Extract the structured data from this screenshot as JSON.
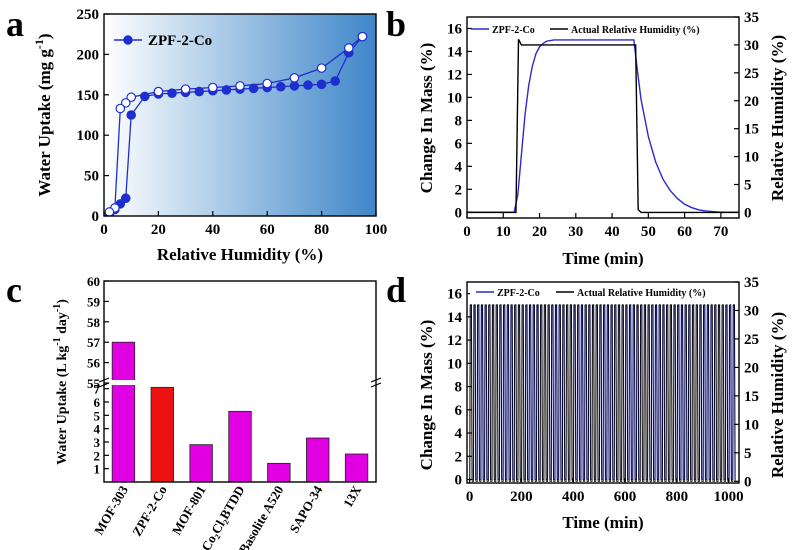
{
  "panel_labels": [
    "a",
    "b",
    "c",
    "d"
  ],
  "chart_data": [
    {
      "panel": "a",
      "type": "line",
      "xlabel": "Relative Humidity (%)",
      "ylabel": "Water Uptake (mg g",
      "ylabel_sup": "-1",
      "ylabel_close": ")",
      "xlim": [
        0,
        100
      ],
      "ylim": [
        0,
        250
      ],
      "xticks": [
        "0",
        "20",
        "40",
        "60",
        "80",
        "100"
      ],
      "yticks": [
        "0",
        "50",
        "100",
        "150",
        "200",
        "250"
      ],
      "legend": "ZPF-2-Co",
      "background_gradient": [
        "#ffffff",
        "#3e86c9"
      ],
      "series": [
        {
          "name": "ZPF-2-Co",
          "kind": "adsorption",
          "color": "#1f2fcf",
          "x": [
            2,
            4,
            6,
            8,
            10,
            15,
            20,
            25,
            30,
            35,
            40,
            45,
            50,
            55,
            60,
            65,
            70,
            75,
            80,
            85,
            90,
            95
          ],
          "y": [
            3,
            8,
            15,
            22,
            125,
            148,
            151,
            152,
            153,
            154,
            155,
            156,
            157,
            158,
            159,
            160,
            161,
            162,
            163,
            167,
            202,
            222
          ]
        },
        {
          "kind": "desorption",
          "color": "#1f2fcf",
          "x": [
            95,
            90,
            80,
            70,
            60,
            50,
            40,
            30,
            20,
            10,
            8,
            6,
            4,
            2
          ],
          "y": [
            222,
            208,
            183,
            171,
            164,
            161,
            159,
            157,
            154,
            147,
            140,
            133,
            10,
            5
          ]
        }
      ]
    },
    {
      "panel": "b",
      "type": "line",
      "xlabel": "Time (min)",
      "ylabel": "Change In Mass (%)",
      "y2label": "Relative Humidity (%)",
      "xlim": [
        0,
        75
      ],
      "ylim": [
        -0.5,
        17
      ],
      "y2lim": [
        -1,
        35
      ],
      "xticks": [
        "0",
        "10",
        "20",
        "30",
        "40",
        "50",
        "60",
        "70"
      ],
      "yticks": [
        "0",
        "2",
        "4",
        "6",
        "8",
        "10",
        "12",
        "14",
        "16"
      ],
      "y2ticks": [
        "0",
        "5",
        "10",
        "15",
        "20",
        "25",
        "30",
        "35"
      ],
      "series": [
        {
          "name": "ZPF-2-Co",
          "axis": "left",
          "color": "#2a2ad0",
          "x": [
            0,
            13,
            14,
            15,
            16,
            17,
            18,
            19,
            20,
            21,
            22,
            24,
            26,
            30,
            35,
            40,
            46,
            47,
            48,
            50,
            52,
            54,
            56,
            58,
            60,
            62,
            64,
            66,
            70,
            75
          ],
          "y": [
            0,
            0,
            1.5,
            5,
            8.5,
            11,
            12.7,
            13.8,
            14.4,
            14.7,
            14.9,
            15,
            15,
            15,
            15,
            15,
            15,
            12.3,
            9.8,
            6.6,
            4.4,
            2.9,
            1.9,
            1.2,
            0.7,
            0.4,
            0.2,
            0.1,
            0,
            0
          ]
        },
        {
          "name": "Actual Relative Humidity (%)",
          "axis": "right",
          "color": "#000000",
          "x": [
            0,
            13.5,
            14.2,
            15,
            46.5,
            47.2,
            48,
            75
          ],
          "y": [
            0,
            0,
            31,
            30,
            30,
            0.5,
            0,
            0
          ]
        }
      ]
    },
    {
      "panel": "c",
      "type": "bar",
      "ylabel": "Water Uptake (L kg",
      "ylabel_sup1": "-1",
      "ylabel_mid": " day",
      "ylabel_sup2": "-1",
      "ylabel_close": ")",
      "upper_ylim": [
        55,
        60
      ],
      "lower_ylim": [
        0,
        7.5
      ],
      "upper_yticks": [
        "55",
        "56",
        "57",
        "58",
        "59",
        "60"
      ],
      "lower_yticks": [
        "1",
        "2",
        "3",
        "4",
        "5",
        "6",
        "7"
      ],
      "categories": [
        "MOF-303",
        "ZPF-2-Co",
        "MOF-801",
        "Co₂Cl₂BTDD",
        "Basolite A520",
        "SAPO-34",
        "13X"
      ],
      "values": [
        57,
        7.1,
        2.8,
        5.3,
        1.4,
        3.3,
        2.1
      ],
      "colors": [
        "#e100e1",
        "#ee1111",
        "#e100e1",
        "#e100e1",
        "#e100e1",
        "#e100e1",
        "#e100e1"
      ]
    },
    {
      "panel": "d",
      "type": "line",
      "xlabel": "Time (min)",
      "ylabel": "Change In Mass (%)",
      "y2label": "Relative Humidity (%)",
      "xlim": [
        -10,
        1040
      ],
      "ylim": [
        -0.3,
        17
      ],
      "y2lim": [
        -0.3,
        35
      ],
      "xticks": [
        "0",
        "200",
        "400",
        "600",
        "800",
        "1000"
      ],
      "yticks": [
        "0",
        "2",
        "4",
        "6",
        "8",
        "10",
        "12",
        "14",
        "16"
      ],
      "y2ticks": [
        "0",
        "5",
        "10",
        "15",
        "20",
        "25",
        "30",
        "35"
      ],
      "series": [
        {
          "name": "ZPF-2-Co",
          "axis": "left",
          "color": "#2a2ad0",
          "cycle_period_min": 14.3,
          "cycles": 72,
          "min": 0,
          "max": 15
        },
        {
          "name": "Actual Relative Humidity (%)",
          "axis": "right",
          "color": "#000000",
          "cycle_period_min": 14.3,
          "cycles": 72,
          "min": 0,
          "max": 31
        }
      ]
    }
  ]
}
